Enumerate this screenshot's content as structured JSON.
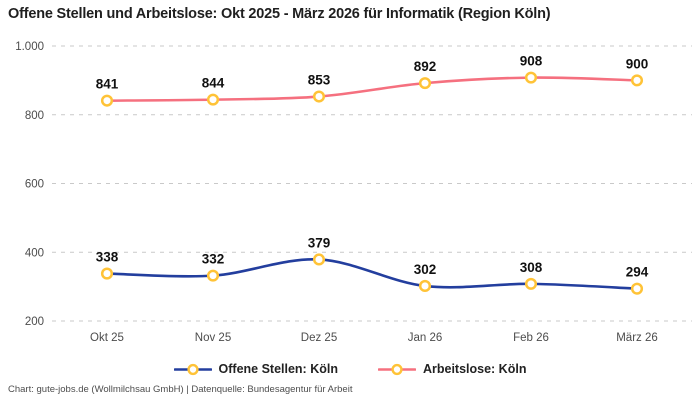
{
  "title": "Offene Stellen und Arbeitslose: Okt 2025 - März 2026 für Informatik (Region Köln)",
  "footer": "Chart: gute-jobs.de (Wollmilchsau GmbH) | Datenquelle: Bundesagentur für Arbeit",
  "colors": {
    "open_positions_line": "#233e9e",
    "unemployed_line": "#f5707f",
    "marker_ring": "#ffc337",
    "marker_fill": "#ffffff",
    "gridline": "#c9c9c9",
    "tick_text": "#4c4c4c",
    "label_text": "#111111"
  },
  "chart_data": {
    "type": "line",
    "title": "Offene Stellen und Arbeitslose: Okt 2025 - März 2026 für Informatik (Region Köln)",
    "categories": [
      "Okt 25",
      "Nov 25",
      "Dez 25",
      "Jan 26",
      "Feb 26",
      "März 26"
    ],
    "series": [
      {
        "name": "Offene Stellen: Köln",
        "color": "#233e9e",
        "values": [
          338,
          332,
          379,
          302,
          308,
          294
        ]
      },
      {
        "name": "Arbeitslose: Köln",
        "color": "#f5707f",
        "values": [
          841,
          844,
          853,
          892,
          908,
          900
        ]
      }
    ],
    "y_ticks": [
      {
        "value": 1000,
        "label": "1.000"
      },
      {
        "value": 800,
        "label": "800"
      },
      {
        "value": 600,
        "label": "600"
      },
      {
        "value": 400,
        "label": "400"
      },
      {
        "value": 200,
        "label": "200"
      }
    ],
    "ylim": [
      200,
      1000
    ],
    "xlabel": "",
    "ylabel": "",
    "grid": "horizontal-dashed",
    "legend_position": "bottom",
    "marker": {
      "shape": "circle",
      "stroke": "#ffc337",
      "fill": "#ffffff"
    }
  }
}
